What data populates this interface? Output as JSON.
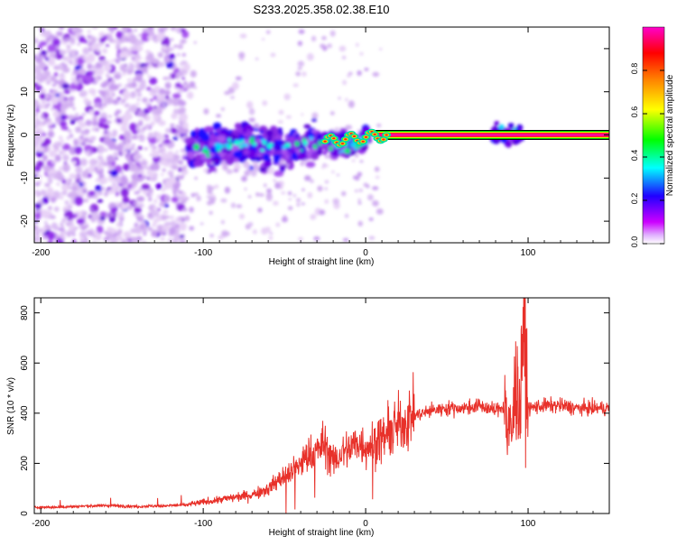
{
  "title": "S233.2025.358.02.38.E10",
  "chart_data": [
    {
      "type": "heatmap",
      "xlabel": "Height of straight line (km)",
      "ylabel": "Frequency (Hz)",
      "xlim": [
        -204,
        150
      ],
      "ylim": [
        -25,
        25
      ],
      "x_ticks": [
        -200,
        -100,
        0,
        100
      ],
      "y_ticks": [
        -20,
        -10,
        0,
        10,
        20
      ],
      "colorbar": {
        "label": "Normalized spectral amplitude",
        "range": [
          0,
          1
        ],
        "ticks": [
          "0.0",
          "0.2",
          "0.4",
          "0.6",
          "0.8"
        ],
        "colors": [
          "#ffffff",
          "#cc00ff",
          "#0000ff",
          "#00ffff",
          "#00ff00",
          "#ffff00",
          "#ff0000",
          "#ff00cc"
        ]
      },
      "features": {
        "noise_region_x": [
          -204,
          -110
        ],
        "transition_x": [
          -110,
          0
        ],
        "constant_tone_x": [
          0,
          150
        ],
        "tone_frequency_hz": 0
      }
    },
    {
      "type": "line",
      "xlabel": "Height of straight line (km)",
      "ylabel": "SNR (10 * v/v)",
      "xlim": [
        -204,
        150
      ],
      "ylim": [
        0,
        860
      ],
      "x_ticks": [
        -200,
        -100,
        0,
        100
      ],
      "y_ticks": [
        0,
        200,
        400,
        600,
        800
      ],
      "series": [
        {
          "color": "#e8312a",
          "x": [
            -204,
            -190,
            -180,
            -170,
            -160,
            -150,
            -140,
            -130,
            -120,
            -110,
            -100,
            -90,
            -80,
            -70,
            -60,
            -50,
            -45,
            -40,
            -35,
            -30,
            -25,
            -20,
            -15,
            -10,
            -5,
            0,
            5,
            10,
            15,
            20,
            25,
            30,
            40,
            50,
            60,
            70,
            80,
            85,
            90,
            92,
            95,
            97,
            100,
            110,
            120,
            130,
            140,
            150
          ],
          "y": [
            25,
            25,
            28,
            30,
            32,
            30,
            28,
            30,
            32,
            35,
            45,
            55,
            65,
            75,
            100,
            150,
            170,
            200,
            230,
            250,
            280,
            200,
            240,
            260,
            280,
            270,
            280,
            300,
            320,
            350,
            370,
            390,
            410,
            420,
            420,
            430,
            410,
            430,
            300,
            500,
            420,
            780,
            420,
            430,
            430,
            420,
            420,
            420
          ]
        }
      ]
    }
  ]
}
